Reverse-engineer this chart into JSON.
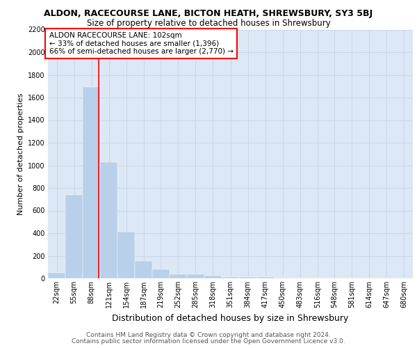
{
  "title1": "ALDON, RACECOURSE LANE, BICTON HEATH, SHREWSBURY, SY3 5BJ",
  "title2": "Size of property relative to detached houses in Shrewsbury",
  "xlabel": "Distribution of detached houses by size in Shrewsbury",
  "ylabel": "Number of detached properties",
  "footer1": "Contains HM Land Registry data © Crown copyright and database right 2024.",
  "footer2": "Contains public sector information licensed under the Open Government Licence v3.0.",
  "bins": [
    22,
    55,
    88,
    121,
    154,
    187,
    219,
    252,
    285,
    318,
    351,
    384,
    417,
    450,
    483,
    516,
    548,
    581,
    614,
    647,
    680
  ],
  "counts": [
    50,
    740,
    1690,
    1030,
    410,
    155,
    80,
    40,
    35,
    25,
    15,
    15,
    15,
    5,
    3,
    2,
    1,
    1,
    1,
    1,
    0
  ],
  "bar_color": "#b8d0ea",
  "grid_color": "#ccd8ec",
  "background_color": "#dce8f5",
  "red_line_x": 102,
  "annotation_title": "ALDON RACECOURSE LANE: 102sqm",
  "annotation_line1": "← 33% of detached houses are smaller (1,396)",
  "annotation_line2": "66% of semi-detached houses are larger (2,770) →",
  "ylim": [
    0,
    2200
  ],
  "yticks": [
    0,
    200,
    400,
    600,
    800,
    1000,
    1200,
    1400,
    1600,
    1800,
    2000,
    2200
  ],
  "bin_width": 33,
  "title1_fontsize": 9,
  "title2_fontsize": 8.5,
  "ylabel_fontsize": 8,
  "xlabel_fontsize": 9,
  "tick_fontsize": 7,
  "footer_fontsize": 6.5,
  "ann_fontsize": 7.5
}
